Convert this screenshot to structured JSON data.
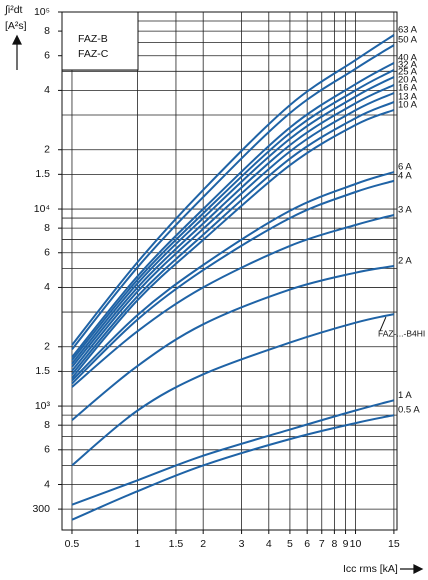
{
  "chart_data": {
    "type": "line",
    "y_label": [
      "∫i²dt",
      "[A²s]"
    ],
    "x_label": "Icc rms [kA]",
    "legend_box": [
      "FAZ-B",
      "FAZ-C"
    ],
    "log_x": true,
    "log_y": true,
    "grid": true,
    "xlim": [
      0.45,
      15.5
    ],
    "ylim": [
      235,
      100000
    ],
    "xticks": [
      0.5,
      1,
      1.5,
      2,
      3,
      4,
      5,
      6,
      7,
      8,
      9,
      10,
      15
    ],
    "yticks": [
      {
        "value": 100000,
        "label": "10⁵"
      },
      {
        "value": 80000,
        "label": "8"
      },
      {
        "value": 60000,
        "label": "6"
      },
      {
        "value": 40000,
        "label": "4"
      },
      {
        "value": 20000,
        "label": "2"
      },
      {
        "value": 15000,
        "label": "1.5"
      },
      {
        "value": 10000,
        "label": "10⁴"
      },
      {
        "value": 8000,
        "label": "8"
      },
      {
        "value": 6000,
        "label": "6"
      },
      {
        "value": 4000,
        "label": "4"
      },
      {
        "value": 2000,
        "label": "2"
      },
      {
        "value": 1500,
        "label": "1.5"
      },
      {
        "value": 1000,
        "label": "10³"
      },
      {
        "value": 800,
        "label": "8"
      },
      {
        "value": 600,
        "label": "6"
      },
      {
        "value": 400,
        "label": "4"
      },
      300
    ],
    "ygrid": [
      300,
      400,
      500,
      600,
      700,
      800,
      900,
      1000,
      1500,
      2000,
      3000,
      4000,
      5000,
      6000,
      7000,
      8000,
      9000,
      10000,
      15000,
      20000,
      30000,
      40000,
      50000,
      60000,
      70000,
      80000,
      90000
    ],
    "x": [
      0.5,
      1,
      2,
      5,
      10,
      15
    ],
    "color": "#1f63a6",
    "series": [
      {
        "name": "63 A",
        "values": [
          2040,
          5380,
          12500,
          33700,
          57000,
          76400
        ]
      },
      {
        "name": "50 A",
        "values": [
          1940,
          5070,
          11500,
          30700,
          51500,
          67900
        ]
      },
      {
        "name": "40 A",
        "values": [
          1770,
          4560,
          10000,
          25900,
          43000,
          55100
        ]
      },
      {
        "name": "32 A",
        "values": [
          1710,
          4380,
          9500,
          24300,
          40000,
          50800
        ]
      },
      {
        "name": "25 A",
        "values": [
          1640,
          4200,
          9000,
          22700,
          37200,
          46800
        ]
      },
      {
        "name": "20 A",
        "values": [
          1580,
          4000,
          8450,
          21100,
          34400,
          42600
        ]
      },
      {
        "name": "16 A",
        "values": [
          1510,
          3820,
          7940,
          19600,
          31700,
          38800
        ]
      },
      {
        "name": "13 A",
        "values": [
          1450,
          3610,
          7410,
          18000,
          28900,
          34900
        ]
      },
      {
        "name": "10 A",
        "values": [
          1390,
          3450,
          6970,
          16700,
          26700,
          31800
        ]
      },
      {
        "name": "6 A",
        "values": [
          1350,
          2900,
          5200,
          9800,
          13400,
          15400
        ]
      },
      {
        "name": "4 A",
        "values": [
          1300,
          2750,
          4900,
          9000,
          12200,
          13900
        ]
      },
      {
        "name": "3 A",
        "values": [
          1250,
          2400,
          4000,
          6500,
          8300,
          9330
        ]
      },
      {
        "name": "2 A",
        "values": [
          849,
          1600,
          2600,
          3900,
          4750,
          5140
        ]
      },
      {
        "name": "FAZ-...-B4HI",
        "values": [
          500,
          950,
          1450,
          2100,
          2650,
          2930
        ]
      },
      {
        "name": "1 A",
        "values": [
          316,
          420,
          560,
          760,
          950,
          1070
        ]
      },
      {
        "name": "0.5 A",
        "values": [
          265,
          370,
          500,
          680,
          820,
          899
        ]
      }
    ]
  }
}
